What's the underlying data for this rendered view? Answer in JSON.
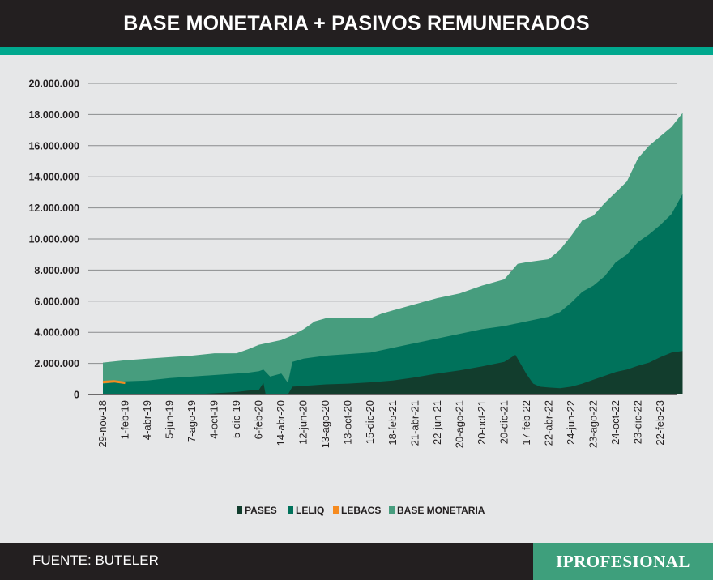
{
  "title": "BASE MONETARIA + PASIVOS REMUNERADOS",
  "footer": {
    "source": "FUENTE: BUTELER",
    "brand": "IPROFESIONAL"
  },
  "colors": {
    "base_monetaria": "#479d7e",
    "leliq": "#00725b",
    "lebacs": "#f68b1f",
    "pases": "#123d2d",
    "header_bg": "#231f20",
    "accent": "#00a88e"
  },
  "chart_data": {
    "type": "area",
    "stacked": true,
    "ylim": [
      0,
      20000000
    ],
    "yticks": [
      "0",
      "2.000.000",
      "4.000.000",
      "6.000.000",
      "8.000.000",
      "10.000.000",
      "12.000.000",
      "14.000.000",
      "16.000.000",
      "18.000.000",
      "20.000.000"
    ],
    "ytick_values": [
      0,
      2000000,
      4000000,
      6000000,
      8000000,
      10000000,
      12000000,
      14000000,
      16000000,
      18000000,
      20000000
    ],
    "x_tick_labels": [
      "29-nov-18",
      "1-feb-19",
      "4-abr-19",
      "5-jun-19",
      "7-ago-19",
      "4-oct-19",
      "5-dic-19",
      "6-feb-20",
      "14-abr-20",
      "12-jun-20",
      "13-ago-20",
      "13-oct-20",
      "15-dic-20",
      "18-feb-21",
      "21-abr-21",
      "22-jun-21",
      "20-ago-21",
      "20-oct-21",
      "20-dic-21",
      "17-feb-22",
      "22-abr-22",
      "24-jun-22",
      "23-ago-22",
      "24-oct-22",
      "23-dic-22",
      "22-feb-23"
    ],
    "grid": true,
    "legend_position": "bottom",
    "series": [
      {
        "name": "PASES",
        "key": "pases",
        "points": [
          [
            0,
            0
          ],
          [
            3.5,
            0
          ],
          [
            4.5,
            40000
          ],
          [
            5,
            80000
          ],
          [
            6,
            160000
          ],
          [
            6.5,
            250000
          ],
          [
            7,
            300000
          ],
          [
            7.2,
            750000
          ],
          [
            7.3,
            0
          ],
          [
            8,
            0
          ],
          [
            8.3,
            0
          ],
          [
            8.5,
            500000
          ],
          [
            9,
            550000
          ],
          [
            10,
            650000
          ],
          [
            11,
            700000
          ],
          [
            12,
            780000
          ],
          [
            13,
            900000
          ],
          [
            14,
            1100000
          ],
          [
            15,
            1350000
          ],
          [
            16,
            1550000
          ],
          [
            17,
            1800000
          ],
          [
            18,
            2100000
          ],
          [
            18.5,
            2550000
          ],
          [
            19,
            1300000
          ],
          [
            19.3,
            700000
          ],
          [
            19.6,
            500000
          ],
          [
            20,
            450000
          ],
          [
            20.5,
            400000
          ],
          [
            21,
            500000
          ],
          [
            21.5,
            700000
          ],
          [
            22,
            950000
          ],
          [
            22.5,
            1200000
          ],
          [
            23,
            1450000
          ],
          [
            23.5,
            1600000
          ],
          [
            24,
            1850000
          ],
          [
            24.5,
            2050000
          ],
          [
            25,
            2400000
          ],
          [
            25.5,
            2700000
          ],
          [
            26,
            2800000
          ]
        ]
      },
      {
        "name": "LELIQ",
        "key": "leliq",
        "points": [
          [
            0,
            700000
          ],
          [
            1,
            850000
          ],
          [
            2,
            900000
          ],
          [
            3,
            1050000
          ],
          [
            4,
            1150000
          ],
          [
            5,
            1250000
          ],
          [
            6,
            1350000
          ],
          [
            6.5,
            1400000
          ],
          [
            7,
            1500000
          ],
          [
            7.2,
            1600000
          ],
          [
            7.5,
            1150000
          ],
          [
            8,
            1350000
          ],
          [
            8.3,
            750000
          ],
          [
            8.5,
            2100000
          ],
          [
            9,
            2300000
          ],
          [
            10,
            2500000
          ],
          [
            11,
            2600000
          ],
          [
            12,
            2700000
          ],
          [
            13,
            3000000
          ],
          [
            14,
            3300000
          ],
          [
            15,
            3600000
          ],
          [
            16,
            3900000
          ],
          [
            17,
            4200000
          ],
          [
            18,
            4400000
          ],
          [
            19,
            4700000
          ],
          [
            20,
            5000000
          ],
          [
            20.5,
            5300000
          ],
          [
            21,
            5900000
          ],
          [
            21.5,
            6600000
          ],
          [
            22,
            7000000
          ],
          [
            22.5,
            7600000
          ],
          [
            23,
            8500000
          ],
          [
            23.5,
            9000000
          ],
          [
            24,
            9800000
          ],
          [
            24.5,
            10300000
          ],
          [
            25,
            10900000
          ],
          [
            25.5,
            11600000
          ],
          [
            26,
            12900000
          ]
        ]
      },
      {
        "name": "LEBACS",
        "key": "lebacs",
        "points": [
          [
            0,
            800000
          ],
          [
            0.5,
            850000
          ],
          [
            1,
            750000
          ],
          [
            1.2,
            0
          ]
        ]
      },
      {
        "name": "BASE MONETARIA",
        "key": "base_monetaria",
        "points": [
          [
            0,
            2050000
          ],
          [
            1,
            2200000
          ],
          [
            2,
            2300000
          ],
          [
            3,
            2400000
          ],
          [
            4,
            2500000
          ],
          [
            5,
            2650000
          ],
          [
            6,
            2650000
          ],
          [
            6.5,
            2900000
          ],
          [
            7,
            3200000
          ],
          [
            8,
            3500000
          ],
          [
            8.5,
            3800000
          ],
          [
            9,
            4200000
          ],
          [
            9.5,
            4700000
          ],
          [
            10,
            4900000
          ],
          [
            11,
            4900000
          ],
          [
            12,
            4900000
          ],
          [
            12.5,
            5200000
          ],
          [
            13,
            5400000
          ],
          [
            14,
            5800000
          ],
          [
            15,
            6200000
          ],
          [
            16,
            6500000
          ],
          [
            17,
            7000000
          ],
          [
            18,
            7400000
          ],
          [
            18.6,
            8400000
          ],
          [
            19,
            8500000
          ],
          [
            20,
            8700000
          ],
          [
            20.5,
            9300000
          ],
          [
            21,
            10200000
          ],
          [
            21.5,
            11200000
          ],
          [
            22,
            11500000
          ],
          [
            22.5,
            12300000
          ],
          [
            23,
            13000000
          ],
          [
            23.5,
            13700000
          ],
          [
            24,
            15200000
          ],
          [
            24.5,
            16000000
          ],
          [
            25,
            16600000
          ],
          [
            25.5,
            17200000
          ],
          [
            26,
            18100000
          ]
        ]
      }
    ]
  }
}
